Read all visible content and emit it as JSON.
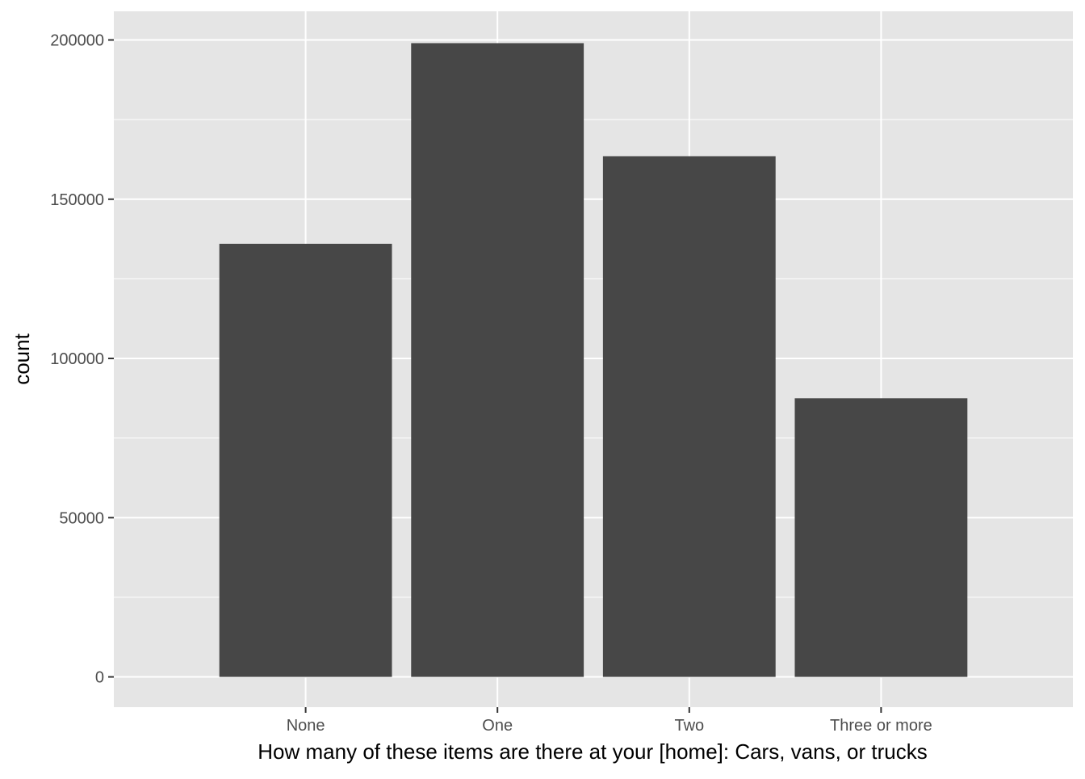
{
  "chart_data": {
    "type": "bar",
    "title": "",
    "xlabel": "How many of these items are there at your [home]: Cars, vans, or trucks",
    "ylabel": "count",
    "categories": [
      "None",
      "One",
      "Two",
      "Three or more"
    ],
    "values": [
      136000,
      199000,
      163500,
      87500
    ],
    "ylim": [
      -9500,
      209000
    ],
    "y_ticks": [
      0,
      50000,
      100000,
      150000,
      200000
    ],
    "y_tick_labels": [
      "0",
      "50000",
      "100000",
      "150000",
      "200000"
    ],
    "grid": true,
    "legend": "none",
    "colors": {
      "panel_background": "#e5e5e5",
      "grid_major": "#ffffff",
      "bar_fill": "#474747",
      "tick_text": "#4d4d4d",
      "tick_mark": "#333333"
    }
  }
}
